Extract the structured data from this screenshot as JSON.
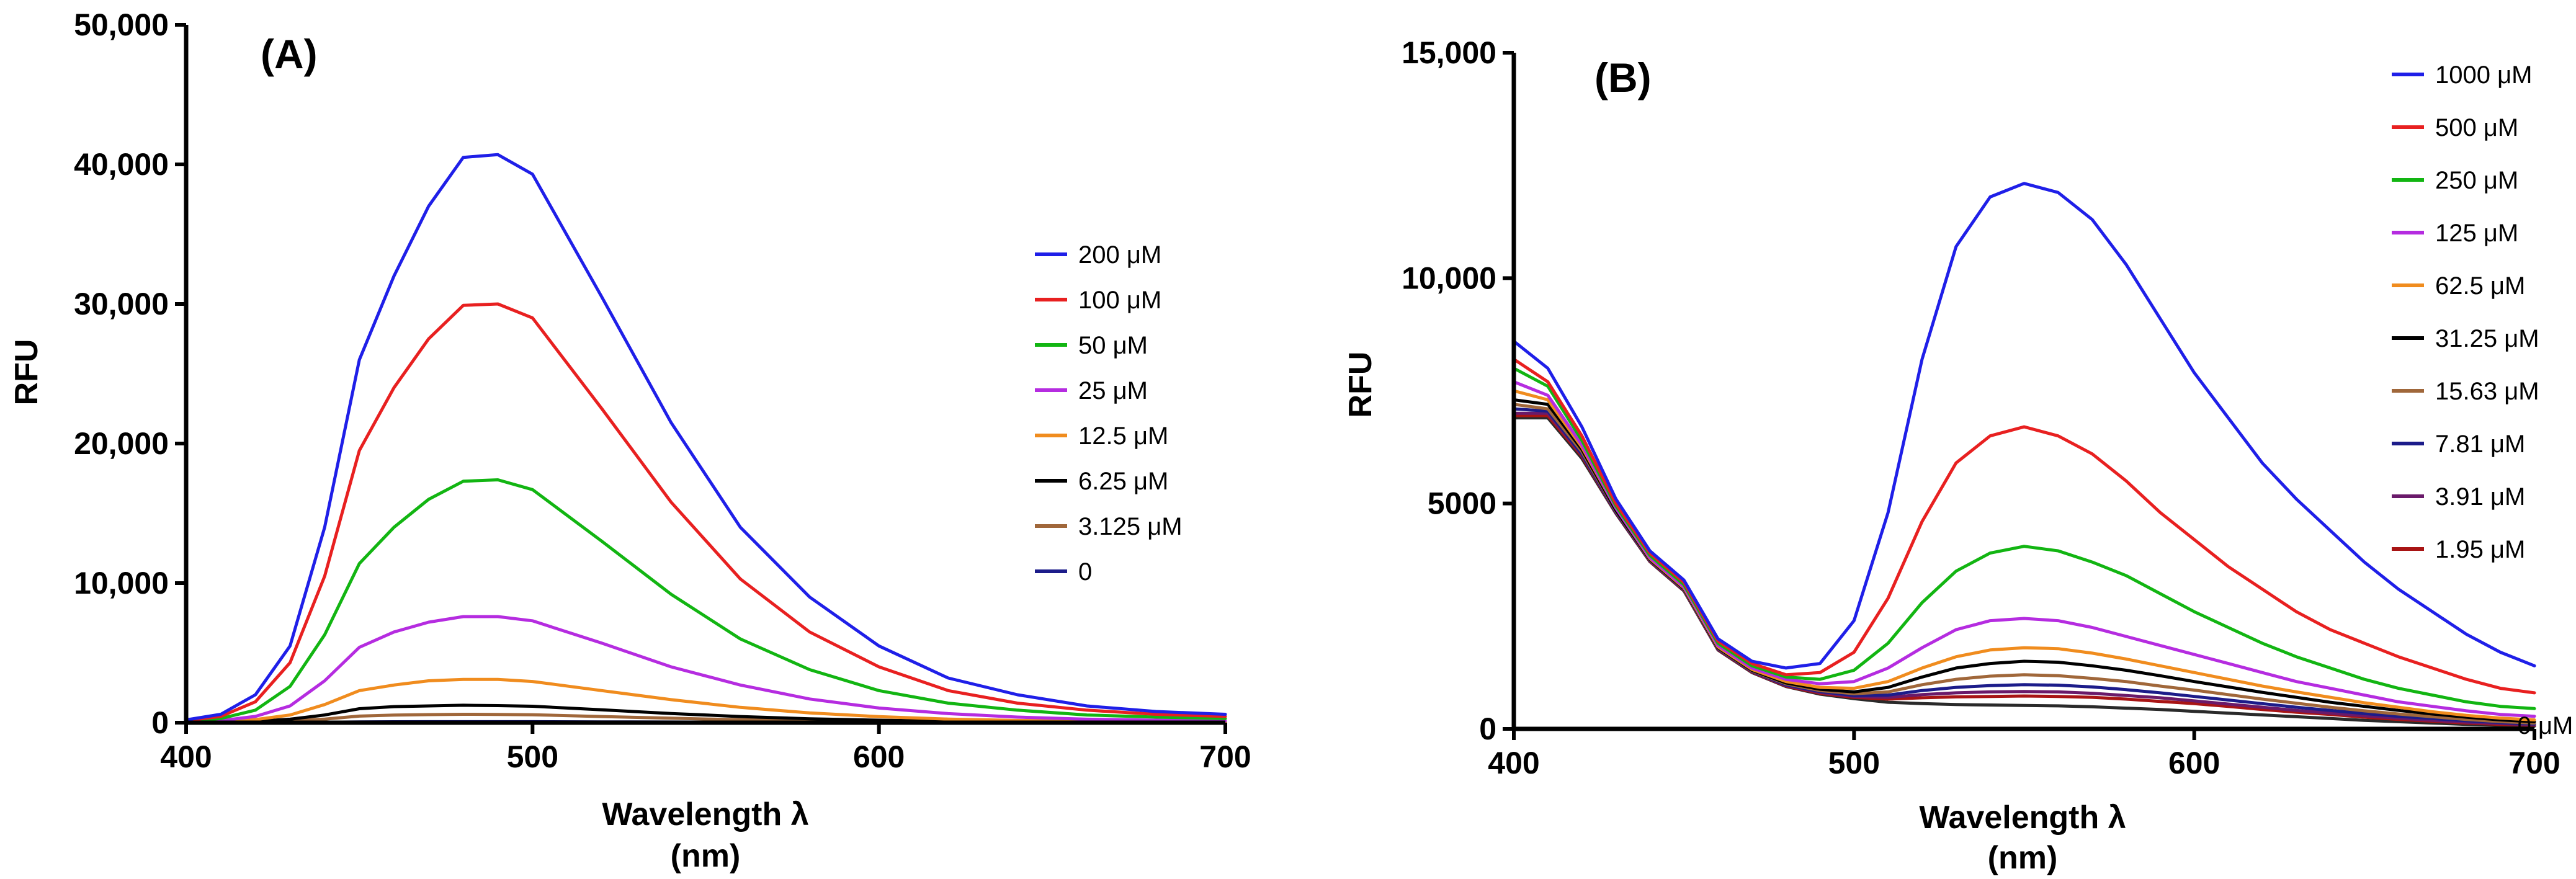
{
  "chart_data": [
    {
      "type": "line",
      "panel_label": "(A)",
      "xlabel_line1": "Wavelength λ",
      "xlabel_line2": "(nm)",
      "ylabel": "RFU",
      "xlim": [
        400,
        700
      ],
      "ylim": [
        0,
        50000
      ],
      "x_ticks": [
        400,
        500,
        600,
        700
      ],
      "x_tick_labels": [
        "400",
        "500",
        "600",
        "700"
      ],
      "y_ticks": [
        0,
        10000,
        20000,
        30000,
        40000,
        50000
      ],
      "y_tick_labels": [
        "0",
        "10,000",
        "20,000",
        "30,000",
        "40,000",
        "50,000"
      ],
      "legend_position": "right",
      "x": [
        400,
        410,
        420,
        430,
        440,
        450,
        460,
        470,
        480,
        490,
        500,
        520,
        540,
        560,
        580,
        600,
        620,
        640,
        660,
        680,
        700
      ],
      "series": [
        {
          "name": "200 μM",
          "color": "#1f1fe8",
          "values": [
            200,
            600,
            2000,
            5500,
            14000,
            26000,
            32000,
            37000,
            40500,
            40700,
            39300,
            30500,
            21500,
            14000,
            9000,
            5500,
            3200,
            2000,
            1200,
            800,
            600
          ]
        },
        {
          "name": "100 μM",
          "color": "#e82020",
          "values": [
            150,
            450,
            1500,
            4300,
            10500,
            19500,
            24000,
            27500,
            29900,
            30000,
            29000,
            22500,
            15800,
            10300,
            6500,
            4000,
            2300,
            1400,
            900,
            600,
            450
          ]
        },
        {
          "name": "50 μM",
          "color": "#12b512",
          "values": [
            100,
            300,
            900,
            2600,
            6300,
            11400,
            14000,
            16000,
            17300,
            17400,
            16700,
            13000,
            9200,
            6000,
            3800,
            2300,
            1400,
            900,
            550,
            400,
            300
          ]
        },
        {
          "name": "25 μM",
          "color": "#b52ce0",
          "values": [
            50,
            150,
            450,
            1200,
            3000,
            5400,
            6500,
            7200,
            7600,
            7600,
            7300,
            5700,
            4000,
            2700,
            1700,
            1050,
            650,
            400,
            250,
            180,
            130
          ]
        },
        {
          "name": "12.5 μM",
          "color": "#f08c1e",
          "values": [
            30,
            80,
            220,
            550,
            1300,
            2300,
            2700,
            3000,
            3100,
            3100,
            2950,
            2300,
            1650,
            1100,
            700,
            430,
            260,
            160,
            110,
            80,
            60
          ]
        },
        {
          "name": "6.25 μM",
          "color": "#000000",
          "values": [
            20,
            40,
            100,
            250,
            550,
            1000,
            1150,
            1200,
            1250,
            1220,
            1180,
            920,
            660,
            440,
            280,
            180,
            110,
            70,
            50,
            35,
            25
          ]
        },
        {
          "name": "3.125 μM",
          "color": "#a0673a",
          "values": [
            10,
            20,
            50,
            120,
            260,
            470,
            540,
            580,
            600,
            590,
            570,
            440,
            320,
            210,
            140,
            90,
            55,
            35,
            25,
            18,
            12
          ]
        },
        {
          "name": "0",
          "color": "#1c1c8a",
          "values": [
            5,
            8,
            12,
            20,
            35,
            55,
            65,
            70,
            72,
            72,
            70,
            60,
            50,
            40,
            32,
            25,
            20,
            16,
            13,
            11,
            10
          ]
        }
      ]
    },
    {
      "type": "line",
      "panel_label": "(B)",
      "xlabel_line1": "Wavelength λ",
      "xlabel_line2": "(nm)",
      "ylabel": "RFU",
      "xlim": [
        400,
        700
      ],
      "ylim": [
        0,
        15000
      ],
      "x_ticks": [
        400,
        500,
        600,
        700
      ],
      "x_tick_labels": [
        "400",
        "500",
        "600",
        "700"
      ],
      "y_ticks": [
        0,
        5000,
        10000,
        15000
      ],
      "y_tick_labels": [
        "0",
        "5000",
        "10,000",
        "15,000"
      ],
      "extra_label": "0 μM",
      "legend_position": "top-right",
      "x": [
        400,
        410,
        420,
        430,
        440,
        450,
        460,
        470,
        480,
        490,
        500,
        510,
        520,
        530,
        540,
        550,
        560,
        570,
        580,
        590,
        600,
        610,
        620,
        630,
        640,
        650,
        660,
        670,
        680,
        690,
        700
      ],
      "series": [
        {
          "name": "1000 μM",
          "color": "#1f1fe8",
          "values": [
            8600,
            8000,
            6700,
            5100,
            3950,
            3300,
            2000,
            1500,
            1350,
            1450,
            2400,
            4800,
            8200,
            10700,
            11800,
            12100,
            11900,
            11300,
            10300,
            9100,
            7900,
            6900,
            5900,
            5100,
            4400,
            3700,
            3100,
            2600,
            2100,
            1700,
            1400
          ]
        },
        {
          "name": "500 μM",
          "color": "#e82020",
          "values": [
            8200,
            7700,
            6500,
            5000,
            3900,
            3250,
            1950,
            1450,
            1200,
            1250,
            1700,
            2900,
            4600,
            5900,
            6500,
            6700,
            6500,
            6100,
            5500,
            4800,
            4200,
            3600,
            3100,
            2600,
            2200,
            1900,
            1600,
            1350,
            1100,
            900,
            800
          ]
        },
        {
          "name": "250 μM",
          "color": "#12b512",
          "values": [
            8000,
            7600,
            6400,
            4950,
            3850,
            3200,
            1900,
            1400,
            1150,
            1100,
            1300,
            1900,
            2800,
            3500,
            3900,
            4050,
            3950,
            3700,
            3400,
            3000,
            2600,
            2250,
            1900,
            1600,
            1350,
            1100,
            900,
            750,
            600,
            500,
            450
          ]
        },
        {
          "name": "125 μM",
          "color": "#b52ce0",
          "values": [
            7700,
            7400,
            6300,
            4900,
            3800,
            3150,
            1850,
            1350,
            1100,
            1000,
            1050,
            1350,
            1800,
            2200,
            2400,
            2450,
            2400,
            2250,
            2050,
            1850,
            1650,
            1450,
            1250,
            1050,
            900,
            750,
            600,
            500,
            400,
            320,
            280
          ]
        },
        {
          "name": "62.5 μM",
          "color": "#f08c1e",
          "values": [
            7500,
            7300,
            6250,
            4900,
            3780,
            3130,
            1820,
            1320,
            1050,
            920,
            900,
            1050,
            1350,
            1600,
            1750,
            1800,
            1780,
            1680,
            1550,
            1400,
            1250,
            1100,
            950,
            820,
            700,
            580,
            480,
            380,
            300,
            240,
            200
          ]
        },
        {
          "name": "31.25 μM",
          "color": "#000000",
          "values": [
            7300,
            7200,
            6200,
            4850,
            3760,
            3110,
            1800,
            1300,
            1020,
            880,
            820,
            920,
            1150,
            1350,
            1450,
            1500,
            1480,
            1400,
            1300,
            1180,
            1050,
            930,
            810,
            700,
            590,
            500,
            410,
            330,
            260,
            200,
            160
          ]
        },
        {
          "name": "15.63 μM",
          "color": "#a0673a",
          "values": [
            7200,
            7100,
            6150,
            4830,
            3750,
            3100,
            1790,
            1290,
            1000,
            850,
            780,
            820,
            980,
            1100,
            1170,
            1200,
            1180,
            1120,
            1050,
            950,
            860,
            760,
            660,
            570,
            480,
            400,
            330,
            270,
            210,
            160,
            130
          ]
        },
        {
          "name": "7.81 μM",
          "color": "#1c1c8a",
          "values": [
            7100,
            7050,
            6100,
            4810,
            3740,
            3090,
            1780,
            1280,
            980,
            830,
            740,
            750,
            850,
            920,
            960,
            980,
            970,
            930,
            870,
            800,
            720,
            640,
            560,
            480,
            410,
            340,
            280,
            230,
            180,
            140,
            110
          ]
        },
        {
          "name": "3.91 μM",
          "color": "#6a1a6a",
          "values": [
            7000,
            7000,
            6080,
            4800,
            3730,
            3080,
            1770,
            1270,
            960,
            810,
            720,
            700,
            760,
            800,
            820,
            830,
            820,
            790,
            740,
            690,
            620,
            550,
            480,
            410,
            350,
            290,
            240,
            190,
            150,
            120,
            90
          ]
        },
        {
          "name": "1.95 μM",
          "color": "#a81414",
          "values": [
            6950,
            6950,
            6050,
            4790,
            3720,
            3070,
            1760,
            1260,
            950,
            790,
            700,
            660,
            690,
            710,
            720,
            730,
            720,
            700,
            660,
            610,
            560,
            500,
            430,
            370,
            320,
            260,
            210,
            170,
            130,
            100,
            80
          ]
        },
        {
          "name": "0 μM",
          "color": "#2a2a2a",
          "values": [
            6900,
            6900,
            6000,
            4780,
            3710,
            3060,
            1750,
            1250,
            940,
            770,
            670,
            590,
            560,
            540,
            530,
            520,
            510,
            490,
            460,
            430,
            390,
            350,
            310,
            270,
            230,
            190,
            160,
            130,
            100,
            80,
            60
          ]
        }
      ]
    }
  ]
}
